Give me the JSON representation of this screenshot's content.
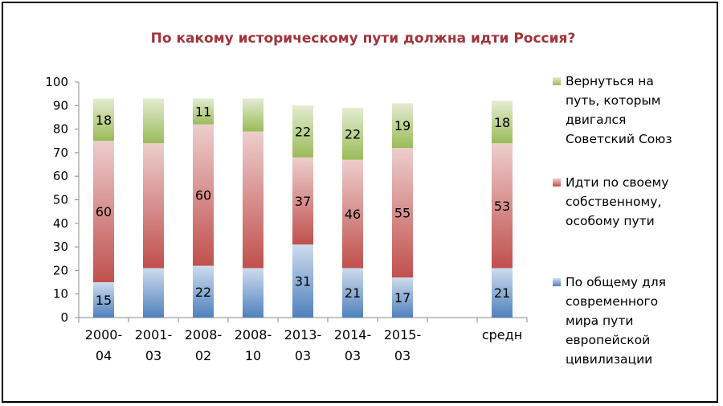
{
  "chart_data": {
    "type": "bar",
    "stacked": true,
    "title": "По какому историческому пути должна идти Россия?",
    "categories": [
      [
        "2000-",
        "04"
      ],
      [
        "2001-",
        "03"
      ],
      [
        "2008-",
        "02"
      ],
      [
        "2008-",
        "10"
      ],
      [
        "2013-",
        "03"
      ],
      [
        "2014-",
        "03"
      ],
      [
        "2015-",
        "03"
      ],
      [
        "",
        ""
      ],
      [
        "средн",
        ""
      ]
    ],
    "ylim": [
      0,
      100
    ],
    "yticks": [
      0,
      10,
      20,
      30,
      40,
      50,
      60,
      70,
      80,
      90,
      100
    ],
    "grid": false,
    "legend_position": "right",
    "series": [
      {
        "name": "По общему для современного мира пути европейской цивилизации",
        "legend_lines": [
          "По общему для",
          "современного",
          "мира пути",
          "европейской",
          "цивилизации"
        ],
        "color": "#4f81bd",
        "values": [
          15,
          21,
          22,
          21,
          31,
          21,
          17,
          null,
          21
        ],
        "labels": [
          "15",
          "",
          "22",
          "",
          "31",
          "21",
          "17",
          "",
          "21"
        ]
      },
      {
        "name": "Идти по своему собственному, особому пути",
        "legend_lines": [
          "Идти по своему",
          "собственному,",
          "особому пути"
        ],
        "color": "#c0504d",
        "values": [
          60,
          53,
          60,
          58,
          37,
          46,
          55,
          null,
          53
        ],
        "labels": [
          "60",
          "",
          "60",
          "",
          "37",
          "46",
          "55",
          "",
          "53"
        ]
      },
      {
        "name": "Вернуться на путь, которым двигался Советский Союз",
        "legend_lines": [
          "Вернуться на",
          "путь, которым",
          "двигался",
          "Советский Союз"
        ],
        "color": "#9bbb59",
        "values": [
          18,
          19,
          11,
          14,
          22,
          22,
          19,
          null,
          18
        ],
        "labels": [
          "18",
          "",
          "11",
          "",
          "22",
          "22",
          "19",
          "",
          "18"
        ]
      }
    ]
  }
}
